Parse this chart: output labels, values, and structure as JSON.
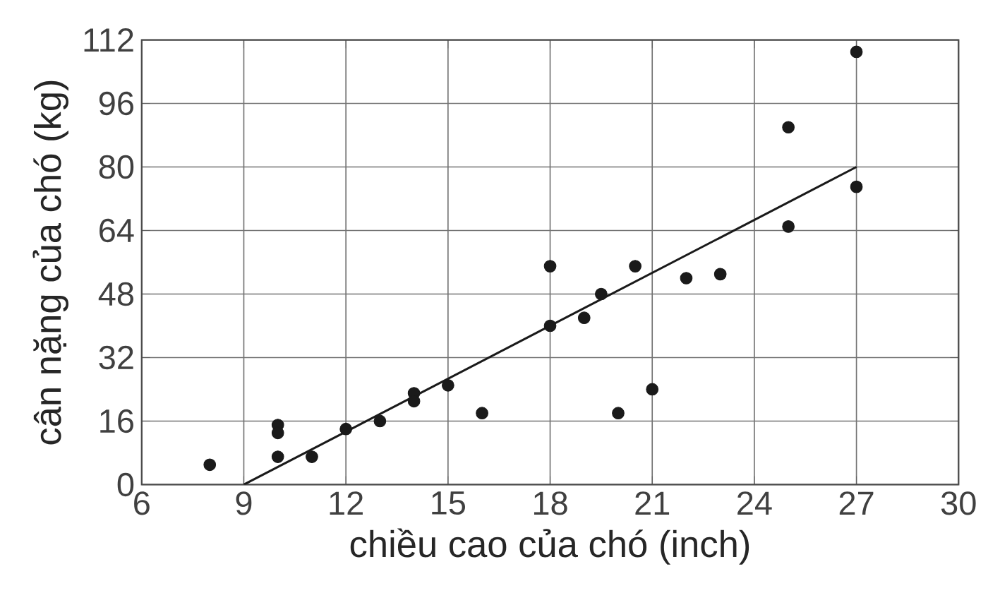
{
  "chart_data": {
    "type": "scatter",
    "xlabel": "chiều cao của chó (inch)",
    "ylabel": "cân nặng của chó (kg)",
    "xlim": [
      6,
      30
    ],
    "xticks": [
      6,
      9,
      12,
      15,
      18,
      21,
      24,
      27,
      30
    ],
    "ylim": [
      0,
      112
    ],
    "yticks": [
      0,
      16,
      32,
      48,
      64,
      80,
      96,
      112
    ],
    "grid": true,
    "series": [
      {
        "color": "#1a1a1a",
        "marker": "circle",
        "x": [
          8,
          10,
          10,
          10,
          11,
          12,
          13,
          14,
          14,
          15,
          16,
          18,
          18,
          19,
          19.5,
          20.5,
          20,
          21,
          22,
          23,
          25,
          25,
          27,
          27
        ],
        "values": [
          5,
          15,
          13,
          7,
          7,
          14,
          16,
          23,
          21,
          25,
          18,
          55,
          40,
          42,
          48,
          55,
          18,
          24,
          52,
          53,
          90,
          65,
          109,
          75
        ]
      },
      {
        "type": "line",
        "color": "#1a1a1a",
        "marker": "none",
        "x": [
          9,
          27
        ],
        "values": [
          0,
          80
        ]
      }
    ]
  }
}
